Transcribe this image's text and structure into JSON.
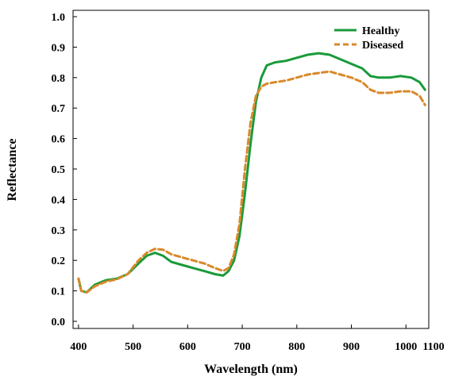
{
  "chart_data": {
    "type": "line",
    "title": "",
    "xlabel": "Wavelength (nm)",
    "ylabel": "Reflectance",
    "xlim": [
      390,
      1100
    ],
    "ylim": [
      0.0,
      1.0
    ],
    "x_ticks": [
      400,
      500,
      600,
      700,
      800,
      900,
      1000,
      1100
    ],
    "y_ticks": [
      0.0,
      0.1,
      0.2,
      0.3,
      0.4,
      0.5,
      0.6,
      0.7,
      0.8,
      0.9,
      1.0
    ],
    "x_tick_labels": [
      "400",
      "500",
      "600",
      "700",
      "800",
      "900",
      "1000",
      "1100"
    ],
    "y_tick_labels": [
      "0.0",
      "0.1",
      "0.2",
      "0.3",
      "0.4",
      "0.5",
      "0.6",
      "0.7",
      "0.8",
      "0.9",
      "1.0"
    ],
    "grid": false,
    "legend_position": "top-right",
    "series": [
      {
        "name": "Healthy",
        "color": "#1a9a3a",
        "style": "solid",
        "x": [
          400,
          405,
          415,
          430,
          450,
          470,
          490,
          510,
          525,
          540,
          555,
          570,
          590,
          610,
          630,
          650,
          665,
          675,
          685,
          695,
          705,
          715,
          725,
          735,
          745,
          760,
          780,
          800,
          820,
          840,
          860,
          880,
          900,
          920,
          935,
          950,
          970,
          990,
          1010,
          1025,
          1035
        ],
        "y": [
          0.14,
          0.1,
          0.095,
          0.12,
          0.135,
          0.14,
          0.155,
          0.19,
          0.215,
          0.225,
          0.215,
          0.195,
          0.185,
          0.175,
          0.165,
          0.155,
          0.15,
          0.165,
          0.2,
          0.28,
          0.42,
          0.58,
          0.72,
          0.8,
          0.84,
          0.85,
          0.855,
          0.865,
          0.875,
          0.88,
          0.875,
          0.86,
          0.845,
          0.83,
          0.805,
          0.8,
          0.8,
          0.805,
          0.8,
          0.785,
          0.76
        ]
      },
      {
        "name": "Diseased",
        "color": "#d9892b",
        "style": "dashed",
        "x": [
          400,
          405,
          415,
          430,
          450,
          470,
          490,
          510,
          525,
          540,
          555,
          570,
          590,
          610,
          630,
          650,
          665,
          675,
          685,
          695,
          705,
          715,
          725,
          735,
          745,
          760,
          780,
          800,
          820,
          840,
          860,
          880,
          900,
          920,
          935,
          950,
          970,
          990,
          1010,
          1025,
          1035
        ],
        "y": [
          0.14,
          0.1,
          0.095,
          0.115,
          0.13,
          0.138,
          0.155,
          0.2,
          0.225,
          0.238,
          0.235,
          0.22,
          0.21,
          0.2,
          0.19,
          0.175,
          0.165,
          0.175,
          0.22,
          0.32,
          0.5,
          0.65,
          0.74,
          0.77,
          0.78,
          0.785,
          0.79,
          0.8,
          0.81,
          0.815,
          0.82,
          0.81,
          0.8,
          0.785,
          0.76,
          0.75,
          0.75,
          0.755,
          0.755,
          0.74,
          0.71
        ]
      }
    ]
  }
}
